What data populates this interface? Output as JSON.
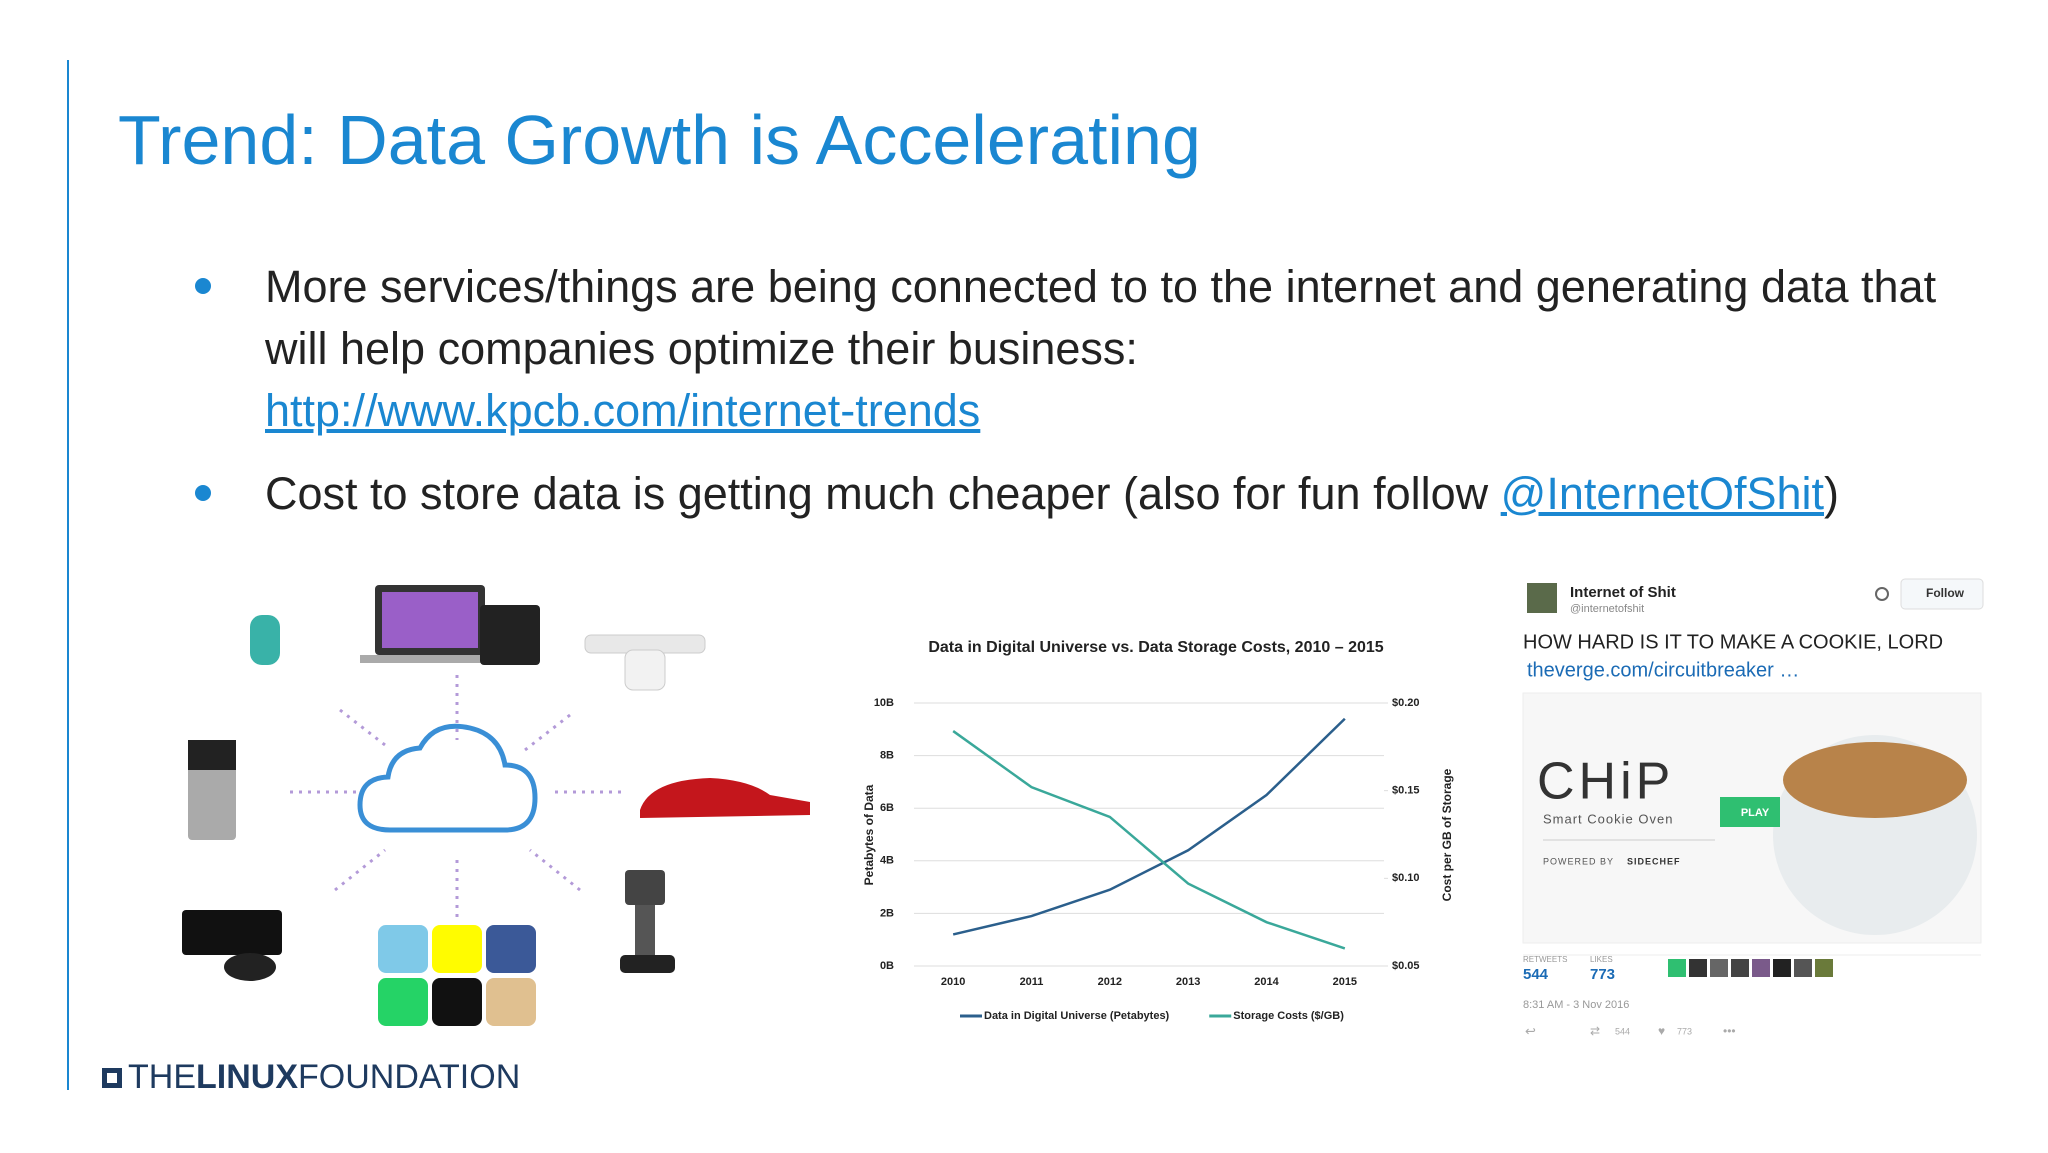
{
  "title": "Trend: Data Growth is Accelerating",
  "bullets": [
    {
      "text": "More services/things are being connected to to the internet and generating data that will help companies optimize their business:",
      "link": "http://www.kpcb.com/internet-trends"
    },
    {
      "text": "Cost to store data is getting much cheaper (also for fun follow",
      "link": "@InternetOfShit",
      "suffix": ")"
    }
  ],
  "chart_data": {
    "type": "line",
    "title": "Data in Digital Universe vs. Data Storage Costs, 2010 – 2015",
    "categories": [
      "2010",
      "2011",
      "2012",
      "2013",
      "2014",
      "2015"
    ],
    "ylabel": "Petabytes of Data",
    "y2label": "Cost per GB of Storage",
    "ylim": [
      0,
      10
    ],
    "yticks": [
      {
        "value": 0,
        "label": "0B"
      },
      {
        "value": 2,
        "label": "2B"
      },
      {
        "value": 4,
        "label": "4B"
      },
      {
        "value": 6,
        "label": "6B"
      },
      {
        "value": 8,
        "label": "8B"
      },
      {
        "value": 10,
        "label": "10B"
      }
    ],
    "y2lim": [
      0.05,
      0.2
    ],
    "y2ticks": [
      {
        "value": 0.05,
        "label": "$0.05"
      },
      {
        "value": 0.1,
        "label": "$0.10"
      },
      {
        "value": 0.15,
        "label": "$0.15"
      },
      {
        "value": 0.2,
        "label": "$0.20"
      }
    ],
    "grid": true,
    "series": [
      {
        "name": "Data in Digital Universe (Petabytes)",
        "color": "#2b5f8c",
        "values": [
          1.2,
          1.9,
          2.9,
          4.4,
          6.5,
          9.4
        ]
      },
      {
        "name": "Storage Costs ($/GB)",
        "color": "#3aa89a",
        "axis": "y2",
        "values": [
          0.184,
          0.152,
          0.135,
          0.097,
          0.075,
          0.06
        ]
      }
    ]
  },
  "tweet": {
    "name": "Internet of Shit",
    "handle": "@internetofshit",
    "follow": "Follow",
    "text": "HOW HARD IS IT TO MAKE A COOKIE, LORD",
    "url": "theverge.com/circuitbreaker …",
    "brand": "CHiP",
    "tagline": "Smart Cookie Oven",
    "play": "PLAY",
    "powered": "POWERED BY",
    "sidechef": "SIDECHEF",
    "retweets_label": "RETWEETS",
    "retweets": "544",
    "likes_label": "LIKES",
    "likes": "773",
    "time": "8:31 AM - 3 Nov 2016",
    "retweets_small": "544",
    "likes_small": "773"
  },
  "footer": {
    "the": "THE",
    "linux": "LINUX",
    "foundation": "FOUNDATION"
  }
}
